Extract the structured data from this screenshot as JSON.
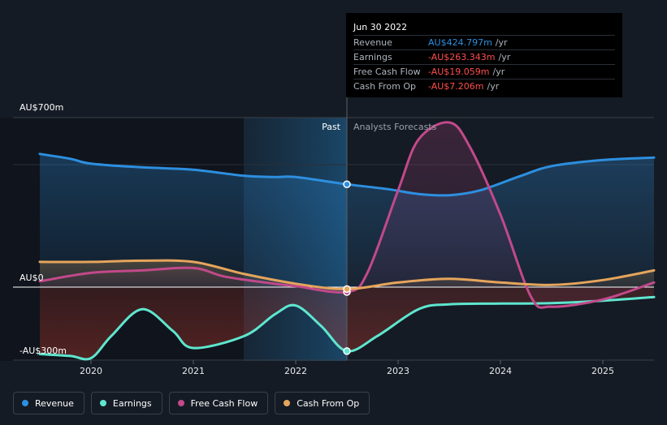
{
  "chart_data": {
    "type": "line",
    "x_ticks": [
      "2020",
      "2021",
      "2022",
      "2023",
      "2024",
      "2025"
    ],
    "y_labels": [
      "AU$700m",
      "AU$0",
      "-AU$300m"
    ],
    "ylim": [
      -300,
      700
    ],
    "units": "AU$m",
    "past_label": "Past",
    "forecast_label": "Analysts Forecasts",
    "divider_x": 2022.5,
    "highlight_range": [
      2021.5,
      2022.5
    ],
    "series": [
      {
        "key": "revenue",
        "name": "Revenue",
        "color": "#2d8fe0",
        "points": [
          [
            2019.5,
            550
          ],
          [
            2019.8,
            530
          ],
          [
            2020.0,
            510
          ],
          [
            2020.5,
            495
          ],
          [
            2021.0,
            485
          ],
          [
            2021.5,
            460
          ],
          [
            2021.8,
            455
          ],
          [
            2022.0,
            455
          ],
          [
            2022.5,
            425
          ],
          [
            2022.9,
            405
          ],
          [
            2023.2,
            385
          ],
          [
            2023.5,
            380
          ],
          [
            2023.8,
            400
          ],
          [
            2024.2,
            460
          ],
          [
            2024.5,
            500
          ],
          [
            2025.0,
            525
          ],
          [
            2025.5,
            535
          ]
        ]
      },
      {
        "key": "earnings",
        "name": "Earnings",
        "color": "#5ee6cf",
        "points": [
          [
            2019.5,
            -275
          ],
          [
            2019.8,
            -283
          ],
          [
            2020.0,
            -292
          ],
          [
            2020.2,
            -200
          ],
          [
            2020.5,
            -90
          ],
          [
            2020.8,
            -180
          ],
          [
            2021.0,
            -250
          ],
          [
            2021.5,
            -200
          ],
          [
            2021.8,
            -110
          ],
          [
            2022.0,
            -75
          ],
          [
            2022.25,
            -160
          ],
          [
            2022.5,
            -263
          ],
          [
            2022.8,
            -200
          ],
          [
            2023.2,
            -90
          ],
          [
            2023.5,
            -70
          ],
          [
            2024.0,
            -67
          ],
          [
            2024.5,
            -65
          ],
          [
            2025.0,
            -55
          ],
          [
            2025.5,
            -40
          ]
        ]
      },
      {
        "key": "free_cash_flow",
        "name": "Free Cash Flow",
        "color": "#c2498a",
        "points": [
          [
            2019.5,
            25
          ],
          [
            2020.0,
            60
          ],
          [
            2020.5,
            70
          ],
          [
            2021.0,
            80
          ],
          [
            2021.3,
            45
          ],
          [
            2021.7,
            20
          ],
          [
            2022.0,
            5
          ],
          [
            2022.5,
            -19
          ],
          [
            2022.7,
            60
          ],
          [
            2023.0,
            400
          ],
          [
            2023.2,
            610
          ],
          [
            2023.5,
            680
          ],
          [
            2023.7,
            580
          ],
          [
            2024.0,
            300
          ],
          [
            2024.3,
            -40
          ],
          [
            2024.5,
            -80
          ],
          [
            2025.0,
            -50
          ],
          [
            2025.5,
            20
          ]
        ]
      },
      {
        "key": "cash_from_op",
        "name": "Cash From Op",
        "color": "#e5a55c",
        "points": [
          [
            2019.5,
            105
          ],
          [
            2020.0,
            105
          ],
          [
            2020.5,
            110
          ],
          [
            2021.0,
            105
          ],
          [
            2021.5,
            55
          ],
          [
            2022.0,
            15
          ],
          [
            2022.5,
            -7
          ],
          [
            2023.0,
            20
          ],
          [
            2023.5,
            35
          ],
          [
            2024.0,
            20
          ],
          [
            2024.5,
            10
          ],
          [
            2025.0,
            30
          ],
          [
            2025.5,
            70
          ]
        ]
      }
    ],
    "markers": [
      {
        "series": "revenue",
        "x": 2022.5,
        "y": 425
      },
      {
        "series": "earnings",
        "x": 2022.5,
        "y": -263
      },
      {
        "series": "free_cash_flow",
        "x": 2022.5,
        "y": -19
      },
      {
        "series": "cash_from_op",
        "x": 2022.5,
        "y": -7
      }
    ]
  },
  "tooltip": {
    "date": "Jun 30 2022",
    "rows": [
      {
        "label": "Revenue",
        "value": "AU$424.797m",
        "unit": "/yr",
        "color": "#2d8fe0"
      },
      {
        "label": "Earnings",
        "value": "-AU$263.343m",
        "unit": "/yr",
        "color": "#ff4d4d"
      },
      {
        "label": "Free Cash Flow",
        "value": "-AU$19.059m",
        "unit": "/yr",
        "color": "#ff4d4d"
      },
      {
        "label": "Cash From Op",
        "value": "-AU$7.206m",
        "unit": "/yr",
        "color": "#ff4d4d"
      }
    ]
  },
  "legend": [
    {
      "label": "Revenue",
      "color": "#2d8fe0"
    },
    {
      "label": "Earnings",
      "color": "#5ee6cf"
    },
    {
      "label": "Free Cash Flow",
      "color": "#c2498a"
    },
    {
      "label": "Cash From Op",
      "color": "#e5a55c"
    }
  ]
}
